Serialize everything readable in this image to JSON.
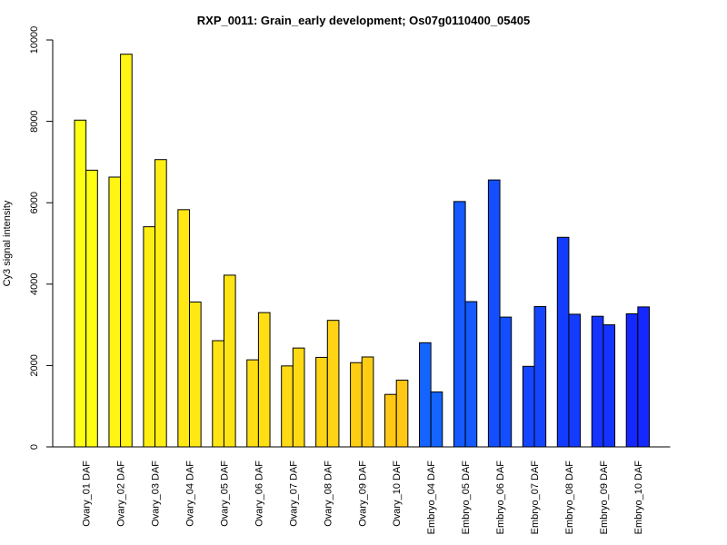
{
  "chart_data": {
    "type": "bar",
    "title": "RXP_0011: Grain_early development; Os07g0110400_05405",
    "xlabel": "",
    "ylabel": "Cy3 signal intensity",
    "ylim": [
      0,
      10000
    ],
    "yticks": [
      0,
      2000,
      4000,
      6000,
      8000,
      10000
    ],
    "ytick_labels": [
      "0",
      "2000",
      "4000",
      "6000",
      "8000",
      "10000"
    ],
    "grid": false,
    "legend": "none",
    "bar_layout": "paired replicates per category",
    "categories": [
      "Ovary_01 DAF",
      "Ovary_02 DAF",
      "Ovary_03 DAF",
      "Ovary_04 DAF",
      "Ovary_05 DAF",
      "Ovary_06 DAF",
      "Ovary_07 DAF",
      "Ovary_08 DAF",
      "Ovary_09 DAF",
      "Ovary_10 DAF",
      "Embryo_04 DAF",
      "Embryo_05 DAF",
      "Embryo_06 DAF",
      "Embryo_07 DAF",
      "Embryo_08 DAF",
      "Embryo_09 DAF",
      "Embryo_10 DAF"
    ],
    "category_colors": [
      "#ffff14",
      "#fff414",
      "#ffee14",
      "#ffe814",
      "#ffe414",
      "#ffdf14",
      "#ffda14",
      "#ffd414",
      "#ffce14",
      "#ffc814",
      "#1464ff",
      "#145aff",
      "#144fff",
      "#1446ff",
      "#143cff",
      "#1433ff",
      "#1428ff"
    ],
    "series": [
      {
        "values": [
          8030,
          6630,
          5410,
          5830,
          2610,
          2140,
          1990,
          2200,
          2070,
          1290,
          2560,
          6030,
          6560,
          1980,
          5150,
          3210,
          3270
        ]
      },
      {
        "values": [
          6800,
          9650,
          7060,
          3560,
          4220,
          3300,
          2430,
          3110,
          2210,
          1640,
          1350,
          3570,
          3190,
          3450,
          3260,
          3000,
          3440
        ]
      }
    ]
  }
}
